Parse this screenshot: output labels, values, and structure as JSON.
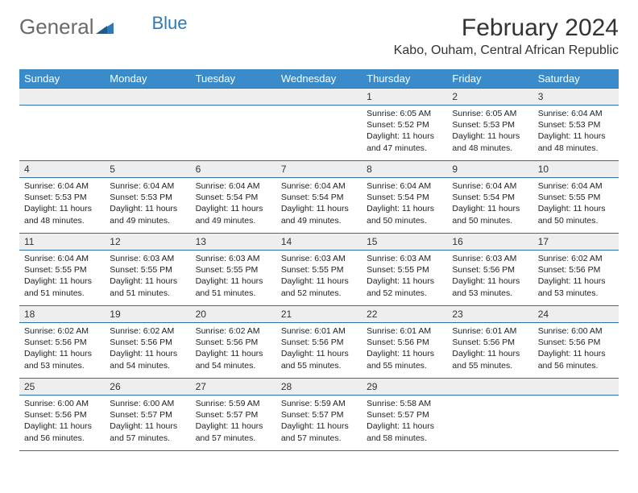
{
  "brand": {
    "general": "General",
    "blue": "Blue"
  },
  "title": "February 2024",
  "location": "Kabo, Ouham, Central African Republic",
  "colors": {
    "header_bg": "#3a8bc9",
    "header_text": "#ffffff",
    "grey_row": "#eeeeee",
    "rule": "#2f6ea3",
    "brand_grey": "#6a6a6a",
    "brand_blue": "#2f79b9"
  },
  "weekdays": [
    "Sunday",
    "Monday",
    "Tuesday",
    "Wednesday",
    "Thursday",
    "Friday",
    "Saturday"
  ],
  "weeks": [
    [
      null,
      null,
      null,
      null,
      {
        "n": "1",
        "sr": "Sunrise: 6:05 AM",
        "ss": "Sunset: 5:52 PM",
        "d1": "Daylight: 11 hours",
        "d2": "and 47 minutes."
      },
      {
        "n": "2",
        "sr": "Sunrise: 6:05 AM",
        "ss": "Sunset: 5:53 PM",
        "d1": "Daylight: 11 hours",
        "d2": "and 48 minutes."
      },
      {
        "n": "3",
        "sr": "Sunrise: 6:04 AM",
        "ss": "Sunset: 5:53 PM",
        "d1": "Daylight: 11 hours",
        "d2": "and 48 minutes."
      }
    ],
    [
      {
        "n": "4",
        "sr": "Sunrise: 6:04 AM",
        "ss": "Sunset: 5:53 PM",
        "d1": "Daylight: 11 hours",
        "d2": "and 48 minutes."
      },
      {
        "n": "5",
        "sr": "Sunrise: 6:04 AM",
        "ss": "Sunset: 5:53 PM",
        "d1": "Daylight: 11 hours",
        "d2": "and 49 minutes."
      },
      {
        "n": "6",
        "sr": "Sunrise: 6:04 AM",
        "ss": "Sunset: 5:54 PM",
        "d1": "Daylight: 11 hours",
        "d2": "and 49 minutes."
      },
      {
        "n": "7",
        "sr": "Sunrise: 6:04 AM",
        "ss": "Sunset: 5:54 PM",
        "d1": "Daylight: 11 hours",
        "d2": "and 49 minutes."
      },
      {
        "n": "8",
        "sr": "Sunrise: 6:04 AM",
        "ss": "Sunset: 5:54 PM",
        "d1": "Daylight: 11 hours",
        "d2": "and 50 minutes."
      },
      {
        "n": "9",
        "sr": "Sunrise: 6:04 AM",
        "ss": "Sunset: 5:54 PM",
        "d1": "Daylight: 11 hours",
        "d2": "and 50 minutes."
      },
      {
        "n": "10",
        "sr": "Sunrise: 6:04 AM",
        "ss": "Sunset: 5:55 PM",
        "d1": "Daylight: 11 hours",
        "d2": "and 50 minutes."
      }
    ],
    [
      {
        "n": "11",
        "sr": "Sunrise: 6:04 AM",
        "ss": "Sunset: 5:55 PM",
        "d1": "Daylight: 11 hours",
        "d2": "and 51 minutes."
      },
      {
        "n": "12",
        "sr": "Sunrise: 6:03 AM",
        "ss": "Sunset: 5:55 PM",
        "d1": "Daylight: 11 hours",
        "d2": "and 51 minutes."
      },
      {
        "n": "13",
        "sr": "Sunrise: 6:03 AM",
        "ss": "Sunset: 5:55 PM",
        "d1": "Daylight: 11 hours",
        "d2": "and 51 minutes."
      },
      {
        "n": "14",
        "sr": "Sunrise: 6:03 AM",
        "ss": "Sunset: 5:55 PM",
        "d1": "Daylight: 11 hours",
        "d2": "and 52 minutes."
      },
      {
        "n": "15",
        "sr": "Sunrise: 6:03 AM",
        "ss": "Sunset: 5:55 PM",
        "d1": "Daylight: 11 hours",
        "d2": "and 52 minutes."
      },
      {
        "n": "16",
        "sr": "Sunrise: 6:03 AM",
        "ss": "Sunset: 5:56 PM",
        "d1": "Daylight: 11 hours",
        "d2": "and 53 minutes."
      },
      {
        "n": "17",
        "sr": "Sunrise: 6:02 AM",
        "ss": "Sunset: 5:56 PM",
        "d1": "Daylight: 11 hours",
        "d2": "and 53 minutes."
      }
    ],
    [
      {
        "n": "18",
        "sr": "Sunrise: 6:02 AM",
        "ss": "Sunset: 5:56 PM",
        "d1": "Daylight: 11 hours",
        "d2": "and 53 minutes."
      },
      {
        "n": "19",
        "sr": "Sunrise: 6:02 AM",
        "ss": "Sunset: 5:56 PM",
        "d1": "Daylight: 11 hours",
        "d2": "and 54 minutes."
      },
      {
        "n": "20",
        "sr": "Sunrise: 6:02 AM",
        "ss": "Sunset: 5:56 PM",
        "d1": "Daylight: 11 hours",
        "d2": "and 54 minutes."
      },
      {
        "n": "21",
        "sr": "Sunrise: 6:01 AM",
        "ss": "Sunset: 5:56 PM",
        "d1": "Daylight: 11 hours",
        "d2": "and 55 minutes."
      },
      {
        "n": "22",
        "sr": "Sunrise: 6:01 AM",
        "ss": "Sunset: 5:56 PM",
        "d1": "Daylight: 11 hours",
        "d2": "and 55 minutes."
      },
      {
        "n": "23",
        "sr": "Sunrise: 6:01 AM",
        "ss": "Sunset: 5:56 PM",
        "d1": "Daylight: 11 hours",
        "d2": "and 55 minutes."
      },
      {
        "n": "24",
        "sr": "Sunrise: 6:00 AM",
        "ss": "Sunset: 5:56 PM",
        "d1": "Daylight: 11 hours",
        "d2": "and 56 minutes."
      }
    ],
    [
      {
        "n": "25",
        "sr": "Sunrise: 6:00 AM",
        "ss": "Sunset: 5:56 PM",
        "d1": "Daylight: 11 hours",
        "d2": "and 56 minutes."
      },
      {
        "n": "26",
        "sr": "Sunrise: 6:00 AM",
        "ss": "Sunset: 5:57 PM",
        "d1": "Daylight: 11 hours",
        "d2": "and 57 minutes."
      },
      {
        "n": "27",
        "sr": "Sunrise: 5:59 AM",
        "ss": "Sunset: 5:57 PM",
        "d1": "Daylight: 11 hours",
        "d2": "and 57 minutes."
      },
      {
        "n": "28",
        "sr": "Sunrise: 5:59 AM",
        "ss": "Sunset: 5:57 PM",
        "d1": "Daylight: 11 hours",
        "d2": "and 57 minutes."
      },
      {
        "n": "29",
        "sr": "Sunrise: 5:58 AM",
        "ss": "Sunset: 5:57 PM",
        "d1": "Daylight: 11 hours",
        "d2": "and 58 minutes."
      },
      null,
      null
    ]
  ]
}
